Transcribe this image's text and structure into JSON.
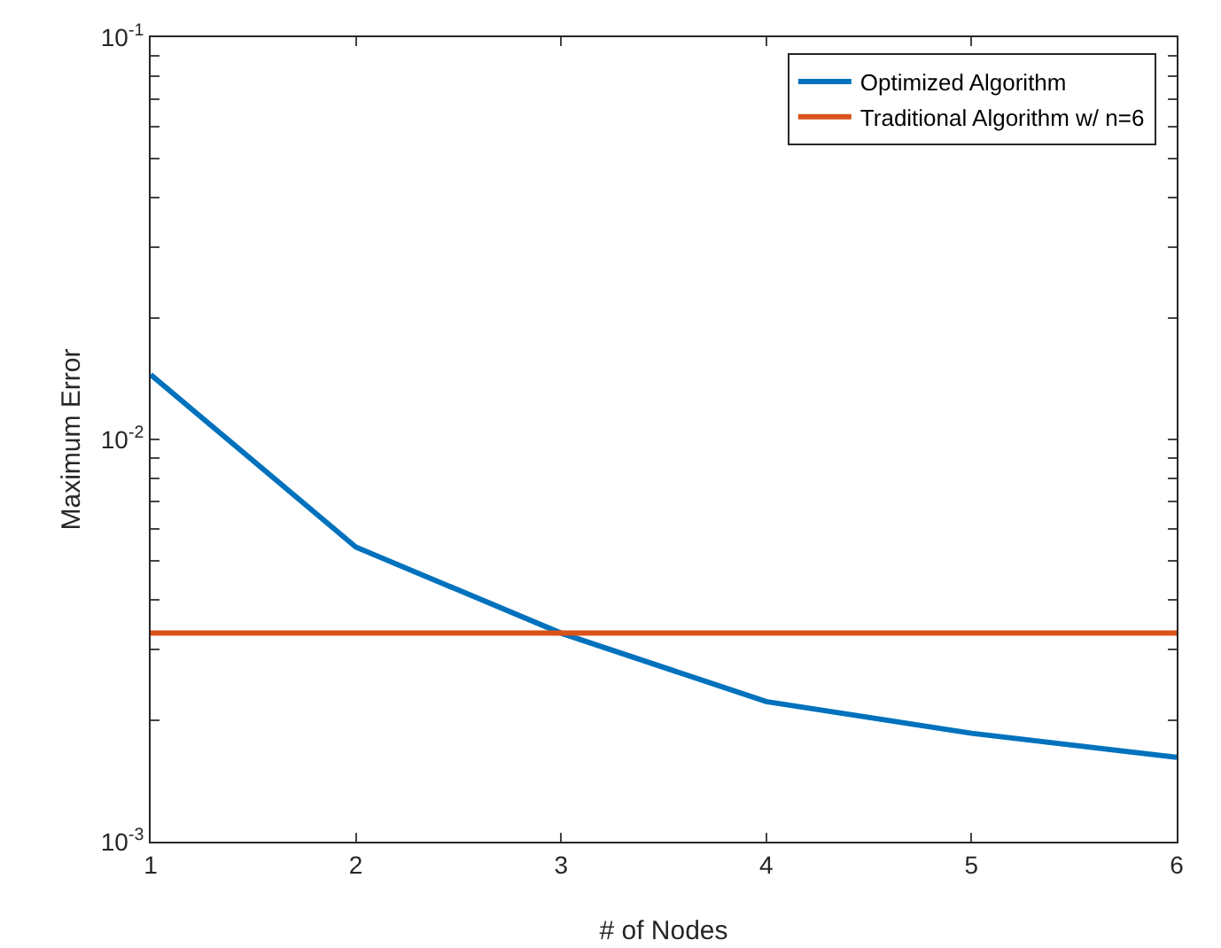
{
  "chart_data": {
    "type": "line",
    "xlabel": "# of Nodes",
    "ylabel": "Maximum Error",
    "x": [
      1,
      2,
      3,
      4,
      5,
      6
    ],
    "series": [
      {
        "name": "Optimized Algorithm",
        "color": "#0072bd",
        "values": [
          0.0145,
          0.0054,
          0.0033,
          0.00223,
          0.00186,
          0.00162
        ]
      },
      {
        "name": "Traditional Algorithm w/ n=6",
        "color": "#d95319",
        "values": [
          0.0033,
          0.0033,
          0.0033,
          0.0033,
          0.0033,
          0.0033
        ]
      }
    ],
    "log": "y",
    "xlim": [
      1,
      6
    ],
    "ylim": [
      0.001,
      0.1
    ],
    "xticks": [
      1,
      2,
      3,
      4,
      5,
      6
    ],
    "yticks": [
      {
        "value": 0.001,
        "label": "10$^{-3}$"
      },
      {
        "value": 0.002,
        "label": null
      },
      {
        "value": 0.003,
        "label": null
      },
      {
        "value": 0.004,
        "label": null
      },
      {
        "value": 0.005,
        "label": null
      },
      {
        "value": 0.006,
        "label": null
      },
      {
        "value": 0.007,
        "label": null
      },
      {
        "value": 0.008,
        "label": null
      },
      {
        "value": 0.009,
        "label": null
      },
      {
        "value": 0.01,
        "label": "10$^{-2}$"
      },
      {
        "value": 0.02,
        "label": null
      },
      {
        "value": 0.03,
        "label": null
      },
      {
        "value": 0.04,
        "label": null
      },
      {
        "value": 0.05,
        "label": null
      },
      {
        "value": 0.06,
        "label": null
      },
      {
        "value": 0.07,
        "label": null
      },
      {
        "value": 0.08,
        "label": null
      },
      {
        "value": 0.09,
        "label": null
      },
      {
        "value": 0.1,
        "label": "10$^{-1}$"
      }
    ],
    "grid": false,
    "legend": "top right",
    "marker": "none",
    "line_style": "solid"
  }
}
